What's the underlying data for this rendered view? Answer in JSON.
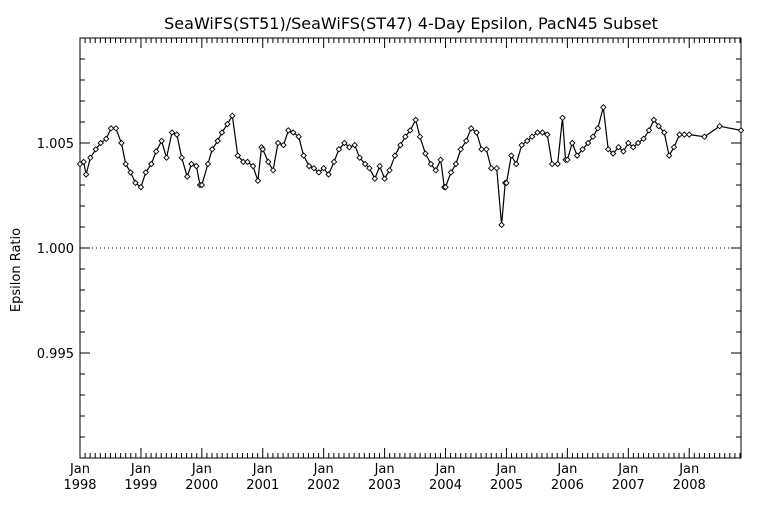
{
  "chart_data": {
    "type": "line",
    "title": "SeaWiFS(ST51)/SeaWiFS(ST47) 4-Day Epsilon, PacN45 Subset",
    "xlabel": "",
    "ylabel": "Epsilon Ratio",
    "xlim": [
      1998.0,
      2008.85
    ],
    "ylim": [
      0.99,
      1.01
    ],
    "y_ticks": [
      0.995,
      1.0,
      1.005
    ],
    "y_tick_labels": [
      "0.995",
      "1.000",
      "1.005"
    ],
    "x_ticks": [
      {
        "year": 1998,
        "month": "Jan"
      },
      {
        "year": 1999,
        "month": "Jan"
      },
      {
        "year": 2000,
        "month": "Jan"
      },
      {
        "year": 2001,
        "month": "Jan"
      },
      {
        "year": 2002,
        "month": "Jan"
      },
      {
        "year": 2003,
        "month": "Jan"
      },
      {
        "year": 2004,
        "month": "Jan"
      },
      {
        "year": 2005,
        "month": "Jan"
      },
      {
        "year": 2006,
        "month": "Jan"
      },
      {
        "year": 2007,
        "month": "Jan"
      },
      {
        "year": 2008,
        "month": "Jan"
      }
    ],
    "reference_line": {
      "y": 1.0,
      "style": "dotted"
    },
    "grid": false,
    "series": [
      {
        "x": [
          1998.0,
          1998.06,
          1998.1,
          1998.17,
          1998.26,
          1998.34,
          1998.43,
          1998.51,
          1998.59,
          1998.68,
          1998.75,
          1998.83,
          1998.91,
          1999.0,
          1999.08,
          1999.17,
          1999.25,
          1999.34,
          1999.42,
          1999.51,
          1999.59,
          1999.67,
          1999.76,
          1999.83,
          1999.91,
          1999.97,
          2000.0,
          2000.1,
          2000.17,
          2000.26,
          2000.33,
          2000.42,
          2000.5,
          2000.59,
          2000.68,
          2000.75,
          2000.84,
          2000.92,
          2000.98,
          2001.0,
          2001.09,
          2001.17,
          2001.25,
          2001.34,
          2001.42,
          2001.5,
          2001.59,
          2001.67,
          2001.76,
          2001.84,
          2001.92,
          2002.0,
          2002.08,
          2002.17,
          2002.25,
          2002.34,
          2002.42,
          2002.51,
          2002.59,
          2002.68,
          2002.75,
          2002.84,
          2002.92,
          2003.0,
          2003.08,
          2003.17,
          2003.26,
          2003.34,
          2003.42,
          2003.51,
          2003.58,
          2003.67,
          2003.76,
          2003.84,
          2003.92,
          2003.98,
          2004.0,
          2004.09,
          2004.17,
          2004.25,
          2004.34,
          2004.42,
          2004.51,
          2004.59,
          2004.67,
          2004.75,
          2004.84,
          2004.92,
          2004.98,
          2005.0,
          2005.08,
          2005.16,
          2005.25,
          2005.34,
          2005.42,
          2005.51,
          2005.59,
          2005.67,
          2005.75,
          2005.84,
          2005.92,
          2005.97,
          2006.0,
          2006.08,
          2006.16,
          2006.25,
          2006.34,
          2006.42,
          2006.5,
          2006.59,
          2006.67,
          2006.75,
          2006.84,
          2006.92,
          2007.0,
          2007.08,
          2007.16,
          2007.25,
          2007.34,
          2007.42,
          2007.5,
          2007.59,
          2007.67,
          2007.75,
          2007.84,
          2007.92,
          2008.0,
          2008.25,
          2008.5,
          2008.85
        ],
        "y": [
          1.004,
          1.0041,
          1.0035,
          1.0043,
          1.0047,
          1.005,
          1.0052,
          1.0057,
          1.0057,
          1.005,
          1.004,
          1.0036,
          1.0031,
          1.0029,
          1.0036,
          1.004,
          1.0046,
          1.0051,
          1.0043,
          1.0055,
          1.0054,
          1.0043,
          1.0034,
          1.004,
          1.0039,
          1.003,
          1.003,
          1.004,
          1.0047,
          1.0051,
          1.0055,
          1.0059,
          1.0063,
          1.0044,
          1.0041,
          1.0041,
          1.0039,
          1.0032,
          1.0048,
          1.0047,
          1.0041,
          1.0037,
          1.005,
          1.0049,
          1.0056,
          1.0055,
          1.0053,
          1.0044,
          1.0039,
          1.0038,
          1.0036,
          1.0038,
          1.0035,
          1.0041,
          1.0047,
          1.005,
          1.0048,
          1.0049,
          1.0043,
          1.004,
          1.0038,
          1.0033,
          1.0039,
          1.0033,
          1.0037,
          1.0044,
          1.0049,
          1.0053,
          1.0056,
          1.0061,
          1.0053,
          1.0045,
          1.004,
          1.0037,
          1.0042,
          1.0029,
          1.0029,
          1.0036,
          1.004,
          1.0047,
          1.0051,
          1.0057,
          1.0055,
          1.0047,
          1.0047,
          1.0038,
          1.0038,
          1.0011,
          1.0031,
          1.0031,
          1.0044,
          1.004,
          1.0049,
          1.0051,
          1.0053,
          1.0055,
          1.0055,
          1.0054,
          1.004,
          1.004,
          1.0062,
          1.0042,
          1.0042,
          1.005,
          1.0044,
          1.0047,
          1.005,
          1.0053,
          1.0057,
          1.0067,
          1.0047,
          1.0045,
          1.0048,
          1.0046,
          1.005,
          1.0048,
          1.005,
          1.0052,
          1.0056,
          1.0061,
          1.0058,
          1.0055,
          1.0044,
          1.0048,
          1.0054,
          1.0054,
          1.0054,
          1.0053,
          1.0058,
          1.0056
        ]
      }
    ]
  }
}
